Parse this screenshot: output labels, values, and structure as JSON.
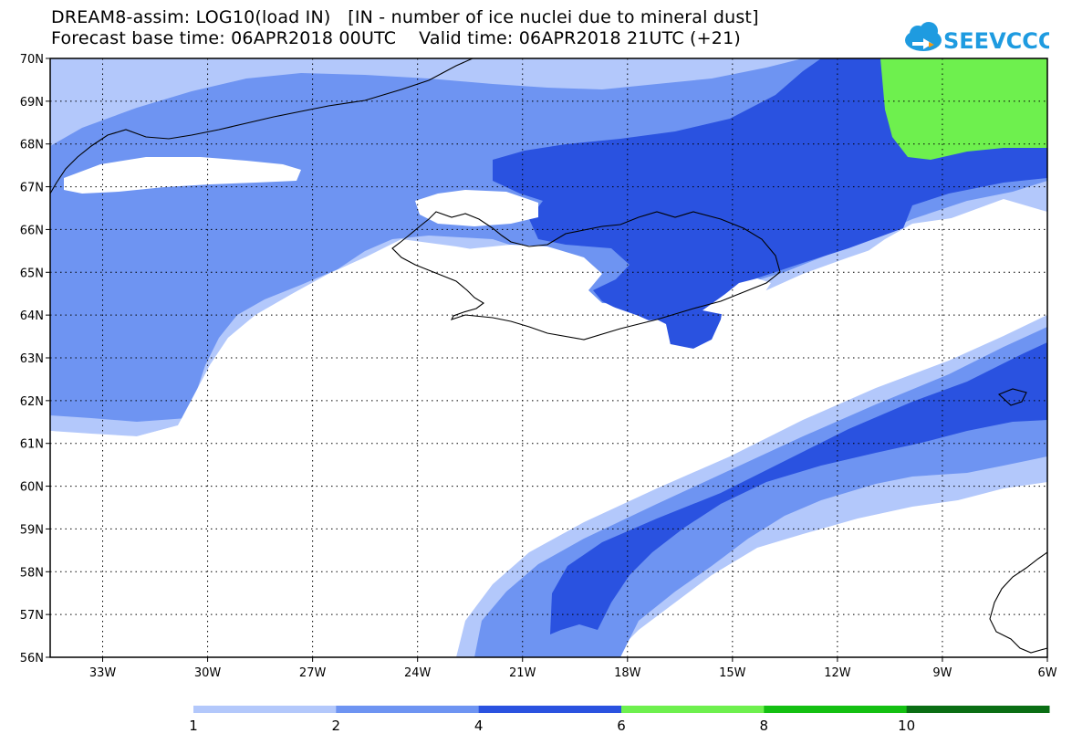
{
  "header": {
    "title_line1": "DREAM8-assim: LOG10(load IN)   [IN - number of ice nuclei due to mineral dust]",
    "title_line2": "Forecast base time: 06APR2018 00UTC    Valid time: 06APR2018 21UTC (+21)"
  },
  "logo": {
    "text": "SEEVCCC",
    "color": "#1e9be0",
    "accent": "#f39c12"
  },
  "map": {
    "lon_range": [
      -34.5,
      -6
    ],
    "lat_range": [
      56,
      70
    ],
    "lon_ticks": [
      "33W",
      "30W",
      "27W",
      "24W",
      "21W",
      "18W",
      "15W",
      "12W",
      "9W",
      "6W"
    ],
    "lat_ticks": [
      "56N",
      "57N",
      "58N",
      "59N",
      "60N",
      "61N",
      "62N",
      "63N",
      "64N",
      "65N",
      "66N",
      "67N",
      "68N",
      "69N",
      "70N"
    ],
    "gridlines": "dotted"
  },
  "colorbar": {
    "labels": [
      "1",
      "2",
      "4",
      "6",
      "8",
      "10"
    ],
    "colors": [
      "#b3c8fb",
      "#6e94f2",
      "#2a52e0",
      "#6ef04e",
      "#14c012",
      "#0a6e14"
    ]
  }
}
